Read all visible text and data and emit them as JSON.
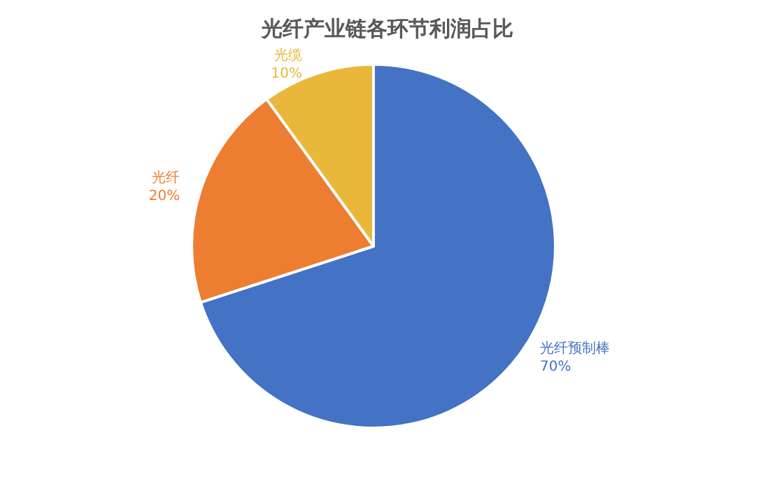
{
  "chart_data": {
    "type": "pie",
    "title": "光纤产业链各环节利润占比",
    "categories": [
      "光纤预制棒",
      "光纤",
      "光缆"
    ],
    "values": [
      70,
      20,
      10
    ],
    "colors": [
      "#4472c4",
      "#ed7d31",
      "#e9b83a"
    ],
    "value_labels": [
      "70%",
      "20%",
      "10%"
    ],
    "legend": false
  }
}
